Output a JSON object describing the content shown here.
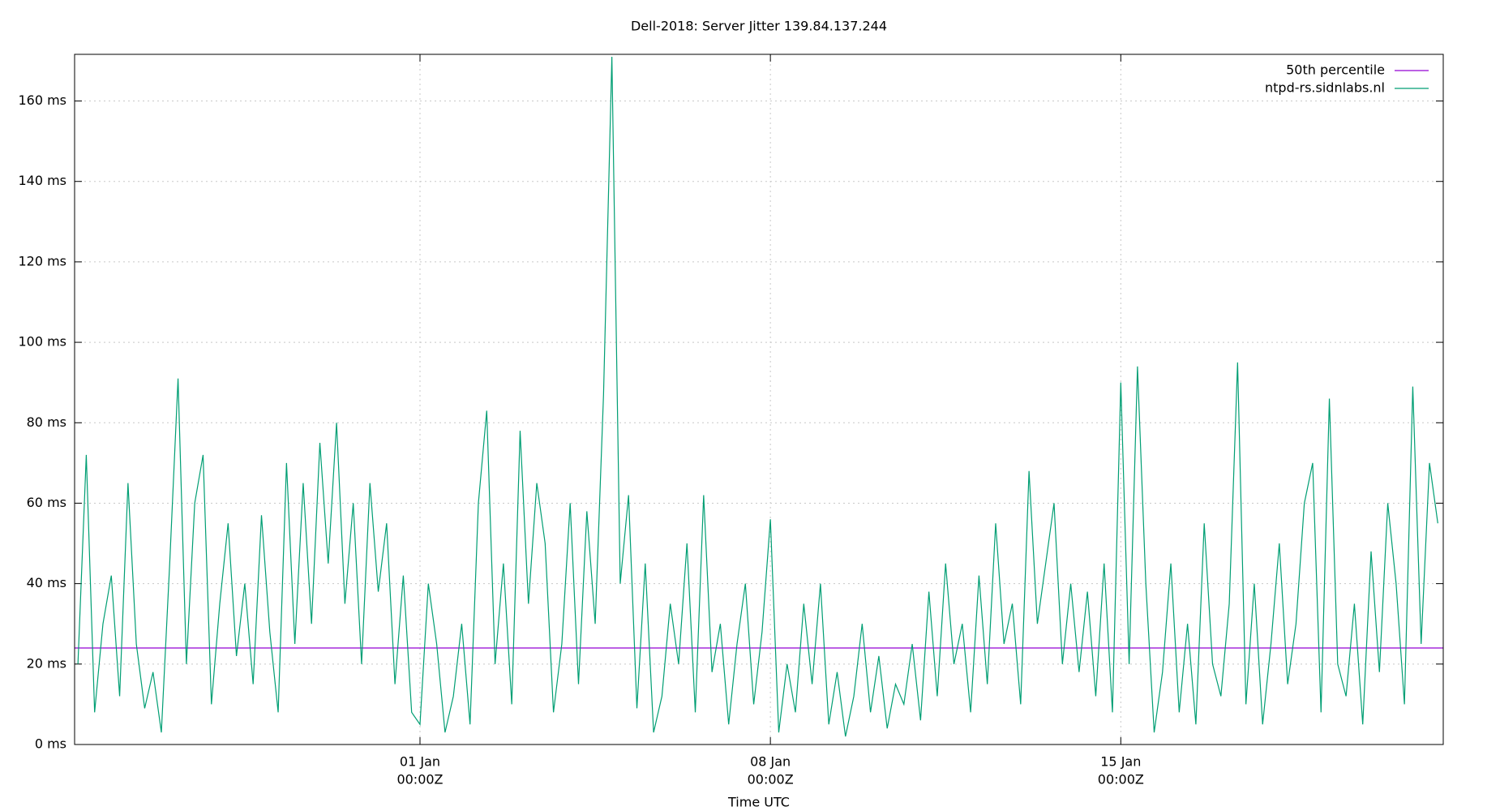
{
  "chart_data": {
    "type": "line",
    "title": "Dell-2018: Server Jitter 139.84.137.244",
    "x_label": "Time UTC",
    "x": [
      -164,
      -160,
      -156,
      -152,
      -148,
      -144,
      -140,
      -136,
      -132,
      -128,
      -124,
      -120,
      -116,
      -112,
      -108,
      -104,
      -100,
      -96,
      -92,
      -88,
      -84,
      -80,
      -76,
      -72,
      -68,
      -64,
      -60,
      -56,
      -52,
      -48,
      -44,
      -40,
      -36,
      -32,
      -28,
      -24,
      -20,
      -16,
      -12,
      -8,
      -4,
      0,
      4,
      8,
      12,
      16,
      20,
      24,
      28,
      32,
      36,
      40,
      44,
      48,
      52,
      56,
      60,
      64,
      68,
      72,
      76,
      80,
      84,
      88,
      92,
      96,
      100,
      104,
      108,
      112,
      116,
      120,
      124,
      128,
      132,
      136,
      140,
      144,
      148,
      152,
      156,
      160,
      164,
      168,
      172,
      176,
      180,
      184,
      188,
      192,
      196,
      200,
      204,
      208,
      212,
      216,
      220,
      224,
      228,
      232,
      236,
      240,
      244,
      248,
      252,
      256,
      260,
      264,
      268,
      272,
      276,
      280,
      284,
      288,
      292,
      296,
      300,
      304,
      308,
      312,
      316,
      320,
      324,
      328,
      332,
      336,
      340,
      344,
      348,
      352,
      356,
      360,
      364,
      368,
      372,
      376,
      380,
      384,
      388,
      392,
      396,
      400,
      404,
      408,
      412,
      416,
      420,
      424,
      428,
      432,
      436,
      440,
      444,
      448,
      452,
      456,
      460,
      464,
      468,
      472,
      476,
      480,
      484,
      488
    ],
    "series": [
      {
        "name": "ntpd-rs.sidnlabs.nl",
        "color": "#009e73",
        "values": [
          20,
          72,
          8,
          30,
          42,
          12,
          65,
          25,
          9,
          18,
          3,
          45,
          91,
          20,
          60,
          72,
          10,
          35,
          55,
          22,
          40,
          15,
          57,
          28,
          8,
          70,
          25,
          65,
          30,
          75,
          45,
          80,
          35,
          60,
          20,
          65,
          38,
          55,
          15,
          42,
          8,
          5,
          40,
          25,
          3,
          12,
          30,
          5,
          60,
          83,
          20,
          45,
          10,
          78,
          35,
          65,
          50,
          8,
          25,
          60,
          15,
          58,
          30,
          87,
          171,
          40,
          62,
          9,
          45,
          3,
          12,
          35,
          20,
          50,
          8,
          62,
          18,
          30,
          5,
          25,
          40,
          10,
          28,
          56,
          3,
          20,
          8,
          35,
          15,
          40,
          5,
          18,
          2,
          12,
          30,
          8,
          22,
          4,
          15,
          10,
          25,
          6,
          38,
          12,
          45,
          20,
          30,
          8,
          42,
          15,
          55,
          25,
          35,
          10,
          68,
          30,
          45,
          60,
          20,
          40,
          18,
          38,
          12,
          45,
          8,
          90,
          20,
          94,
          40,
          3,
          18,
          45,
          8,
          30,
          5,
          55,
          20,
          12,
          35,
          95,
          10,
          40,
          5,
          25,
          50,
          15,
          30,
          60,
          70,
          8,
          86,
          20,
          12,
          35,
          5,
          48,
          18,
          60,
          40,
          10,
          89,
          25,
          70,
          55
        ]
      }
    ],
    "reference_line": {
      "name": "50th percentile",
      "color": "#9400d3",
      "value": 24
    },
    "xlim": [
      -165.6,
      490.6
    ],
    "ylim": [
      0,
      171.6
    ],
    "xticks": [
      {
        "value": 0,
        "label": "01 Jan",
        "sublabel": "00:00Z"
      },
      {
        "value": 168,
        "label": "08 Jan",
        "sublabel": "00:00Z"
      },
      {
        "value": 336,
        "label": "15 Jan",
        "sublabel": "00:00Z"
      }
    ],
    "yticks": [
      {
        "value": 0,
        "label": "0 ms"
      },
      {
        "value": 20,
        "label": "20 ms"
      },
      {
        "value": 40,
        "label": "40 ms"
      },
      {
        "value": 60,
        "label": "60 ms"
      },
      {
        "value": 80,
        "label": "80 ms"
      },
      {
        "value": 100,
        "label": "100 ms"
      },
      {
        "value": 120,
        "label": "120 ms"
      },
      {
        "value": 140,
        "label": "140 ms"
      },
      {
        "value": 160,
        "label": "160 ms"
      }
    ],
    "grid": true,
    "legend": "top-right"
  }
}
